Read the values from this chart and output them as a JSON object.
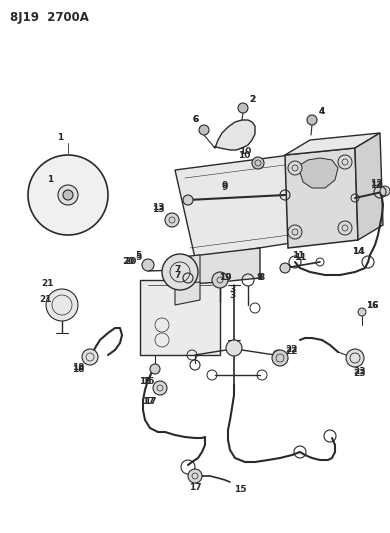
{
  "title": "8J19  2700A",
  "bg_color": "#ffffff",
  "line_color": "#2a2a2a",
  "fig_width": 3.9,
  "fig_height": 5.33,
  "dpi": 100
}
